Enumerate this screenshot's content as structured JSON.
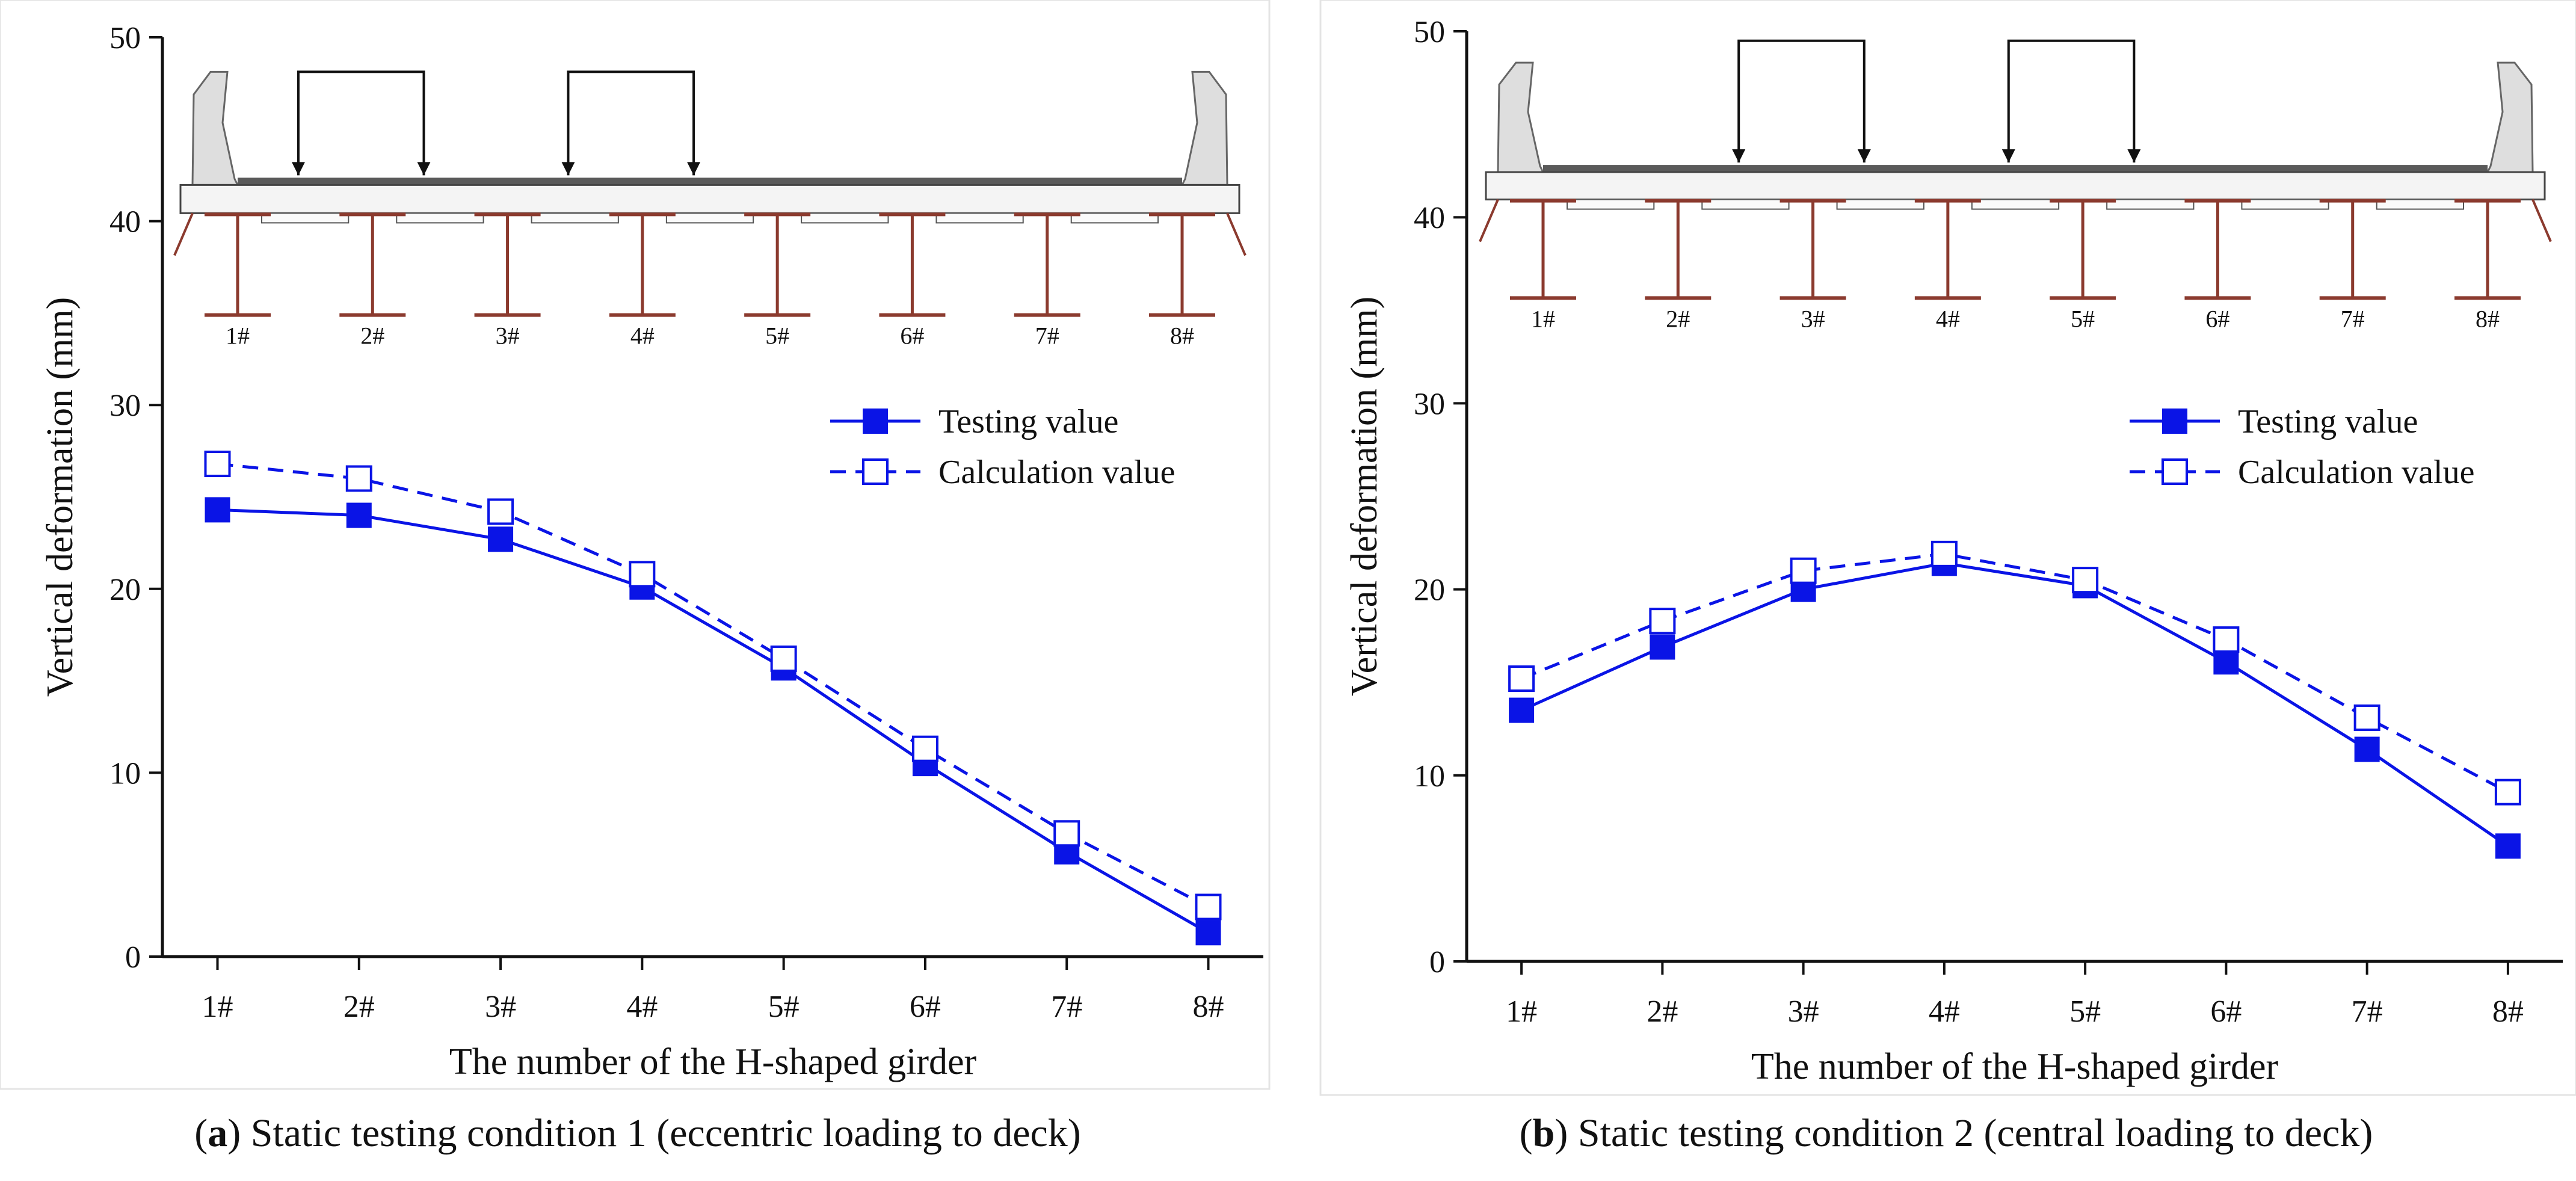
{
  "colors": {
    "series": "#0a14e6",
    "girder": "#8b3a2e",
    "barrier_fill": "#dedede",
    "deck_fill": "#f4f4f4",
    "pavement": "#5a5a5a",
    "axis": "#111111"
  },
  "inset": {
    "girder_labels": [
      "1#",
      "2#",
      "3#",
      "4#",
      "5#",
      "6#",
      "7#",
      "8#"
    ]
  },
  "chart_data": [
    {
      "type": "line",
      "panel": "a",
      "caption": {
        "letter": "a",
        "text": "Static testing condition 1 (eccentric loading to deck)"
      },
      "xlabel": "The number of the H-shaped girder",
      "ylabel": "Vertical deformation (mm)",
      "categories": [
        "1#",
        "2#",
        "3#",
        "4#",
        "5#",
        "6#",
        "7#",
        "8#"
      ],
      "ylim": [
        0,
        50
      ],
      "yticks": [
        0,
        10,
        20,
        30,
        40,
        50
      ],
      "legend_position": "right",
      "load_arrows_description": "two paired load arrows over girders 1#-2# and 3#-4#",
      "series": [
        {
          "name": "Testing value",
          "marker": "filled-square",
          "line": "solid",
          "values": [
            24.3,
            24.0,
            22.7,
            20.1,
            15.7,
            10.5,
            5.7,
            1.3
          ]
        },
        {
          "name": "Calculation value",
          "marker": "open-square",
          "line": "dashed",
          "values": [
            26.8,
            26.0,
            24.2,
            20.8,
            16.2,
            11.3,
            6.7,
            2.7
          ]
        }
      ]
    },
    {
      "type": "line",
      "panel": "b",
      "caption": {
        "letter": "b",
        "text": "Static testing condition 2 (central loading to deck)"
      },
      "xlabel": "The number of the H-shaped girder",
      "ylabel": "Vertical deformation (mm)",
      "categories": [
        "1#",
        "2#",
        "3#",
        "4#",
        "5#",
        "6#",
        "7#",
        "8#"
      ],
      "ylim": [
        0,
        50
      ],
      "yticks": [
        0,
        10,
        20,
        30,
        40,
        50
      ],
      "legend_position": "right",
      "load_arrows_description": "two paired load arrows over girders 2#-3# and 4#-5#",
      "series": [
        {
          "name": "Testing value",
          "marker": "filled-square",
          "line": "solid",
          "values": [
            13.5,
            16.9,
            20.0,
            21.4,
            20.2,
            16.1,
            11.4,
            6.2
          ]
        },
        {
          "name": "Calculation value",
          "marker": "open-square",
          "line": "dashed",
          "values": [
            15.2,
            18.3,
            21.0,
            21.9,
            20.5,
            17.3,
            13.1,
            9.1
          ]
        }
      ]
    }
  ]
}
